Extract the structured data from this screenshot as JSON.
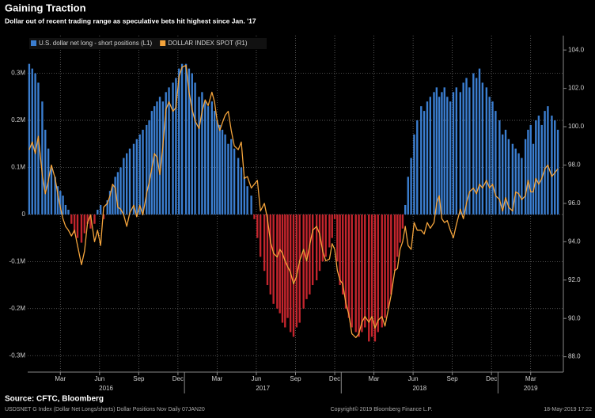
{
  "chart_data": {
    "type": "bar",
    "title": "Gaining Traction",
    "subtitle": "Dollar out of recent trading range as speculative bets hit highest since Jan. '17",
    "x": [
      "2016-01",
      "2016-01",
      "2016-01",
      "2016-01",
      "2016-02",
      "2016-02",
      "2016-02",
      "2016-02",
      "2016-03",
      "2016-03",
      "2016-03",
      "2016-03",
      "2016-03",
      "2016-04",
      "2016-04",
      "2016-04",
      "2016-04",
      "2016-05",
      "2016-05",
      "2016-05",
      "2016-05",
      "2016-06",
      "2016-06",
      "2016-06",
      "2016-06",
      "2016-07",
      "2016-07",
      "2016-07",
      "2016-07",
      "2016-07",
      "2016-08",
      "2016-08",
      "2016-08",
      "2016-08",
      "2016-09",
      "2016-09",
      "2016-09",
      "2016-09",
      "2016-10",
      "2016-10",
      "2016-10",
      "2016-10",
      "2016-10",
      "2016-11",
      "2016-11",
      "2016-11",
      "2016-11",
      "2016-12",
      "2016-12",
      "2016-12",
      "2016-12",
      "2017-01",
      "2017-01",
      "2017-01",
      "2017-01",
      "2017-02",
      "2017-02",
      "2017-02",
      "2017-02",
      "2017-03",
      "2017-03",
      "2017-03",
      "2017-03",
      "2017-03",
      "2017-04",
      "2017-04",
      "2017-04",
      "2017-04",
      "2017-05",
      "2017-05",
      "2017-05",
      "2017-05",
      "2017-06",
      "2017-06",
      "2017-06",
      "2017-06",
      "2017-07",
      "2017-07",
      "2017-07",
      "2017-07",
      "2017-08",
      "2017-08",
      "2017-08",
      "2017-08",
      "2017-08",
      "2017-09",
      "2017-09",
      "2017-09",
      "2017-09",
      "2017-10",
      "2017-10",
      "2017-10",
      "2017-10",
      "2017-11",
      "2017-11",
      "2017-11",
      "2017-11",
      "2017-12",
      "2017-12",
      "2017-12",
      "2017-12",
      "2017-12",
      "2018-01",
      "2018-01",
      "2018-01",
      "2018-01",
      "2018-02",
      "2018-02",
      "2018-02",
      "2018-02",
      "2018-03",
      "2018-03",
      "2018-03",
      "2018-03",
      "2018-04",
      "2018-04",
      "2018-04",
      "2018-04",
      "2018-05",
      "2018-05",
      "2018-05",
      "2018-05",
      "2018-05",
      "2018-06",
      "2018-06",
      "2018-06",
      "2018-06",
      "2018-07",
      "2018-07",
      "2018-07",
      "2018-07",
      "2018-08",
      "2018-08",
      "2018-08",
      "2018-08",
      "2018-08",
      "2018-09",
      "2018-09",
      "2018-09",
      "2018-09",
      "2018-10",
      "2018-10",
      "2018-10",
      "2018-10",
      "2018-11",
      "2018-11",
      "2018-11",
      "2018-11",
      "2018-12",
      "2018-12",
      "2018-12",
      "2018-12",
      "2019-01",
      "2019-01",
      "2019-01",
      "2019-01",
      "2019-02",
      "2019-02",
      "2019-02",
      "2019-02",
      "2019-03",
      "2019-03",
      "2019-03",
      "2019-03",
      "2019-03",
      "2019-04",
      "2019-04",
      "2019-04",
      "2019-04",
      "2019-05",
      "2019-05",
      "2019-05"
    ],
    "series": [
      {
        "name": "U.S. dollar net long - short positions (L1)",
        "type": "bar",
        "axis": "y",
        "color": "#3b7ed0",
        "negative_color": "#c4252d",
        "values": [
          0.32,
          0.31,
          0.3,
          0.28,
          0.24,
          0.18,
          0.14,
          0.1,
          0.08,
          0.06,
          0.05,
          0.04,
          0.02,
          0.01,
          -0.02,
          -0.04,
          -0.05,
          -0.06,
          -0.04,
          -0.02,
          -0.03,
          -0.02,
          0.01,
          0.02,
          -0.01,
          0.03,
          0.05,
          0.06,
          0.08,
          0.09,
          0.1,
          0.12,
          0.13,
          0.14,
          0.15,
          0.16,
          0.17,
          0.18,
          0.19,
          0.2,
          0.22,
          0.23,
          0.24,
          0.25,
          0.24,
          0.26,
          0.27,
          0.28,
          0.29,
          0.31,
          0.32,
          0.32,
          0.31,
          0.3,
          0.28,
          0.25,
          0.26,
          0.24,
          0.23,
          0.24,
          0.22,
          0.2,
          0.19,
          0.18,
          0.17,
          0.15,
          0.16,
          0.14,
          0.12,
          0.1,
          0.08,
          0.06,
          0.04,
          -0.01,
          -0.05,
          -0.09,
          -0.12,
          -0.15,
          -0.17,
          -0.19,
          -0.2,
          -0.21,
          -0.23,
          -0.24,
          -0.22,
          -0.25,
          -0.26,
          -0.24,
          -0.23,
          -0.2,
          -0.18,
          -0.17,
          -0.15,
          -0.14,
          -0.12,
          -0.1,
          -0.09,
          -0.07,
          -0.05,
          -0.01,
          -0.1,
          -0.15,
          -0.17,
          -0.2,
          -0.22,
          -0.24,
          -0.25,
          -0.26,
          -0.25,
          -0.24,
          -0.27,
          -0.26,
          -0.27,
          -0.25,
          -0.24,
          -0.22,
          -0.2,
          -0.17,
          -0.12,
          -0.09,
          -0.06,
          -0.03,
          0.02,
          0.08,
          0.12,
          0.17,
          0.2,
          0.23,
          0.22,
          0.24,
          0.25,
          0.26,
          0.27,
          0.25,
          0.26,
          0.27,
          0.25,
          0.24,
          0.26,
          0.27,
          0.26,
          0.28,
          0.29,
          0.27,
          0.3,
          0.29,
          0.31,
          0.28,
          0.27,
          0.25,
          0.24,
          0.22,
          0.2,
          0.17,
          0.18,
          0.16,
          0.15,
          0.14,
          0.13,
          0.12,
          0.16,
          0.18,
          0.19,
          0.15,
          0.2,
          0.21,
          0.19,
          0.22,
          0.23,
          0.21,
          0.2,
          0.18
        ]
      },
      {
        "name": "DOLLAR INDEX SPOT (R1)",
        "type": "line",
        "axis": "y2",
        "color": "#f4a43c",
        "values": [
          98.8,
          99.2,
          98.6,
          99.5,
          97.5,
          96.5,
          97.2,
          98.0,
          97.3,
          96.5,
          95.8,
          95.2,
          94.8,
          94.6,
          94.3,
          94.6,
          93.8,
          92.8,
          93.5,
          95.0,
          95.4,
          94.0,
          94.6,
          93.8,
          95.8,
          96.0,
          96.4,
          97.0,
          96.8,
          95.8,
          95.7,
          95.4,
          94.8,
          95.5,
          95.9,
          95.3,
          95.9,
          95.4,
          96.5,
          97.1,
          97.8,
          98.6,
          98.4,
          97.5,
          99.0,
          100.9,
          101.3,
          100.8,
          101.0,
          102.6,
          103.1,
          103.2,
          101.8,
          100.9,
          100.3,
          99.9,
          100.8,
          101.4,
          101.1,
          101.8,
          101.3,
          100.3,
          99.8,
          100.2,
          100.6,
          100.8,
          99.8,
          99.0,
          98.8,
          99.2,
          97.3,
          97.4,
          96.8,
          97.0,
          97.2,
          95.6,
          96.0,
          95.2,
          94.0,
          93.4,
          93.2,
          93.6,
          93.4,
          93.0,
          92.7,
          92.4,
          91.8,
          92.2,
          93.0,
          93.6,
          93.0,
          93.8,
          94.6,
          94.8,
          94.4,
          93.5,
          93.0,
          93.1,
          93.9,
          93.6,
          92.5,
          92.0,
          91.8,
          90.8,
          90.2,
          89.2,
          89.0,
          89.2,
          89.8,
          90.1,
          89.8,
          90.1,
          89.5,
          89.9,
          90.1,
          89.6,
          90.4,
          91.2,
          92.5,
          92.6,
          93.6,
          94.0,
          94.8,
          93.8,
          93.6,
          95.0,
          94.6,
          94.6,
          94.4,
          95.0,
          94.7,
          95.0,
          96.0,
          96.4,
          95.2,
          95.0,
          95.1,
          94.6,
          94.2,
          94.9,
          95.7,
          95.2,
          96.0,
          96.6,
          96.8,
          96.5,
          97.0,
          96.8,
          97.2,
          96.8,
          97.0,
          96.4,
          96.2,
          95.6,
          96.3,
          95.8,
          95.6,
          96.6,
          96.5,
          96.2,
          96.4,
          97.2,
          96.6,
          96.6,
          97.3,
          97.0,
          97.3,
          97.8,
          98.0,
          97.4,
          97.6,
          97.8
        ]
      }
    ],
    "xlim": [
      "2016-01",
      "2019-05"
    ],
    "xticks": [
      {
        "value": "2016-03",
        "label": "Mar"
      },
      {
        "value": "2016-06",
        "label": "Jun"
      },
      {
        "value": "2016-09",
        "label": "Sep"
      },
      {
        "value": "2016-12",
        "label": "Dec"
      },
      {
        "value": "2017-03",
        "label": "Mar"
      },
      {
        "value": "2017-06",
        "label": "Jun"
      },
      {
        "value": "2017-09",
        "label": "Sep"
      },
      {
        "value": "2017-12",
        "label": "Dec"
      },
      {
        "value": "2018-03",
        "label": "Mar"
      },
      {
        "value": "2018-06",
        "label": "Jun"
      },
      {
        "value": "2018-09",
        "label": "Sep"
      },
      {
        "value": "2018-12",
        "label": "Dec"
      },
      {
        "value": "2019-03",
        "label": "Mar"
      }
    ],
    "year_labels": [
      "2016",
      "2017",
      "2018",
      "2019"
    ],
    "ylim": [
      -0.335,
      0.38
    ],
    "yticks": [
      {
        "value": 0.3,
        "label": "0.3M"
      },
      {
        "value": 0.2,
        "label": "0.2M"
      },
      {
        "value": 0.1,
        "label": "0.1M"
      },
      0,
      {
        "value": -0.1,
        "label": "-0.1M"
      },
      {
        "value": -0.2,
        "label": "-0.2M"
      },
      {
        "value": -0.3,
        "label": "-0.3M"
      }
    ],
    "y2lim": [
      87.2,
      104.75
    ],
    "y2ticks": [
      {
        "value": 88,
        "label": "88.0"
      },
      {
        "value": 90,
        "label": "90.0"
      },
      {
        "value": 92,
        "label": "92.0"
      },
      {
        "value": 94,
        "label": "94.0"
      },
      {
        "value": 96,
        "label": "96.0"
      },
      {
        "value": 98,
        "label": "98.0"
      },
      {
        "value": 100,
        "label": "100.0"
      },
      {
        "value": 102,
        "label": "102.0"
      },
      {
        "value": 104,
        "label": "104.0"
      }
    ],
    "grid": true,
    "legend": "top-left",
    "source": "Source: CFTC, Bloomberg",
    "footer_left": "USDSNET G Index (Dollar Net Longs/shorts) Dollar Positions Nov  Daily 07JAN20",
    "copyright": "Copyright© 2019 Bloomberg Finance L.P.",
    "timestamp": "18-May-2019 17:22"
  }
}
